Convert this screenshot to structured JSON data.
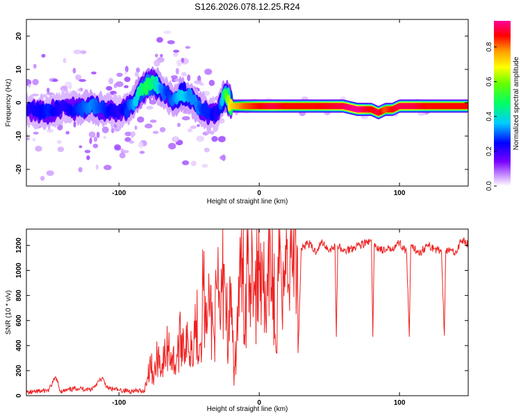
{
  "title": "S126.2026.078.12.25.R24",
  "chart_data": [
    {
      "type": "heatmap",
      "title": "S126.2026.078.12.25.R24",
      "xlabel": "Height of straight line (km)",
      "ylabel": "Frequency (Hz)",
      "xlim": [
        -166,
        149
      ],
      "ylim": [
        -25,
        25
      ],
      "xticks": [
        -100,
        0,
        100
      ],
      "xtick_labels": [
        "-100",
        "0",
        "100"
      ],
      "yticks": [
        -20,
        -10,
        0,
        10,
        20
      ],
      "ytick_labels": [
        "-20",
        "-10",
        "0",
        "10",
        "20"
      ],
      "colorbar": {
        "label": "Normalized spectral amplitude",
        "range": [
          0,
          0.95
        ],
        "ticks": [
          0,
          0.2,
          0.4,
          0.6,
          0.8
        ],
        "tick_labels": [
          "0.0",
          "0.2",
          "0.4",
          "0.6",
          "0.8"
        ],
        "colors": [
          "#ffffff",
          "#cc99ff",
          "#7700ff",
          "#0000ff",
          "#00ccff",
          "#00ff66",
          "#66ff00",
          "#ffff00",
          "#ff9900",
          "#ff0000",
          "#ff0099"
        ]
      },
      "ridge": {
        "x": [
          -166,
          -150,
          -140,
          -130,
          -120,
          -110,
          -100,
          -95,
          -90,
          -85,
          -80,
          -75,
          -70,
          -65,
          -60,
          -55,
          -50,
          -45,
          -40,
          -35,
          -30,
          -28,
          -25,
          -22,
          -20,
          -15,
          -10,
          0,
          10,
          20,
          40,
          60,
          70,
          80,
          85,
          90,
          95,
          100,
          110,
          120,
          140,
          149
        ],
        "freq": [
          -2,
          -3,
          -1,
          -2,
          -1,
          -2,
          -3,
          -2,
          0,
          3,
          5,
          6,
          4,
          2,
          1,
          3,
          2,
          -1,
          -2,
          -4,
          -3,
          -1,
          2,
          1,
          -1,
          -1,
          -1,
          -1,
          -1,
          -1,
          -1,
          -1,
          -2,
          -2,
          -3,
          -2,
          -2,
          -1,
          -1,
          -1,
          -1,
          -1
        ],
        "amp": [
          0.25,
          0.3,
          0.25,
          0.3,
          0.35,
          0.3,
          0.25,
          0.3,
          0.35,
          0.45,
          0.5,
          0.45,
          0.35,
          0.3,
          0.35,
          0.4,
          0.35,
          0.35,
          0.3,
          0.3,
          0.25,
          0.3,
          0.45,
          0.6,
          0.7,
          0.75,
          0.8,
          0.85,
          0.9,
          0.85,
          0.85,
          0.9,
          0.95,
          0.85,
          0.9,
          0.8,
          0.85,
          0.9,
          0.9,
          0.85,
          0.85,
          0.85
        ]
      }
    },
    {
      "type": "line",
      "xlabel": "Height of straight line (km)",
      "ylabel": "SNR (10 * v/v)",
      "xlim": [
        -166,
        149
      ],
      "ylim": [
        0,
        1330
      ],
      "xticks": [
        -100,
        0,
        100
      ],
      "xtick_labels": [
        "-100",
        "0",
        "100"
      ],
      "yticks": [
        0,
        200,
        400,
        600,
        800,
        1000,
        1200
      ],
      "ytick_labels": [
        "0",
        "200",
        "400",
        "600",
        "800",
        "1000",
        "1200"
      ],
      "color": "#ee2222",
      "series": [
        {
          "name": "SNR",
          "x": [
            -166,
            -160,
            -150,
            -145,
            -142,
            -140,
            -130,
            -120,
            -112,
            -108,
            -100,
            -90,
            -82,
            -80,
            -78,
            -75,
            -72,
            -70,
            -65,
            -60,
            -55,
            -50,
            -45,
            -42,
            -40,
            -38,
            -35,
            -32,
            -30,
            -28,
            -25,
            -22,
            -20,
            -18,
            -15,
            -12,
            -10,
            -8,
            -6,
            -5,
            -3,
            0,
            2,
            5,
            8,
            10,
            12,
            15,
            18,
            20,
            22,
            25,
            27,
            28,
            30,
            35,
            40,
            45,
            50,
            54,
            55,
            56,
            60,
            70,
            80,
            81,
            82,
            90,
            100,
            105,
            107,
            108,
            115,
            120,
            130,
            132,
            133,
            140,
            145,
            149
          ],
          "y": [
            25,
            30,
            45,
            150,
            40,
            35,
            60,
            50,
            140,
            60,
            45,
            35,
            40,
            120,
            280,
            150,
            350,
            200,
            400,
            250,
            500,
            350,
            600,
            400,
            900,
            500,
            700,
            450,
            850,
            600,
            1050,
            400,
            900,
            80,
            700,
            1100,
            550,
            1330,
            900,
            1200,
            800,
            1000,
            1150,
            500,
            1200,
            950,
            350,
            1200,
            1000,
            1250,
            1150,
            1180,
            1200,
            450,
            1180,
            1220,
            1150,
            1230,
            1160,
            1200,
            470,
            1200,
            1150,
            1200,
            1230,
            470,
            1200,
            1150,
            1220,
            1150,
            470,
            1180,
            1150,
            1200,
            1150,
            480,
            1160,
            1150,
            1250,
            1200
          ]
        }
      ]
    }
  ]
}
